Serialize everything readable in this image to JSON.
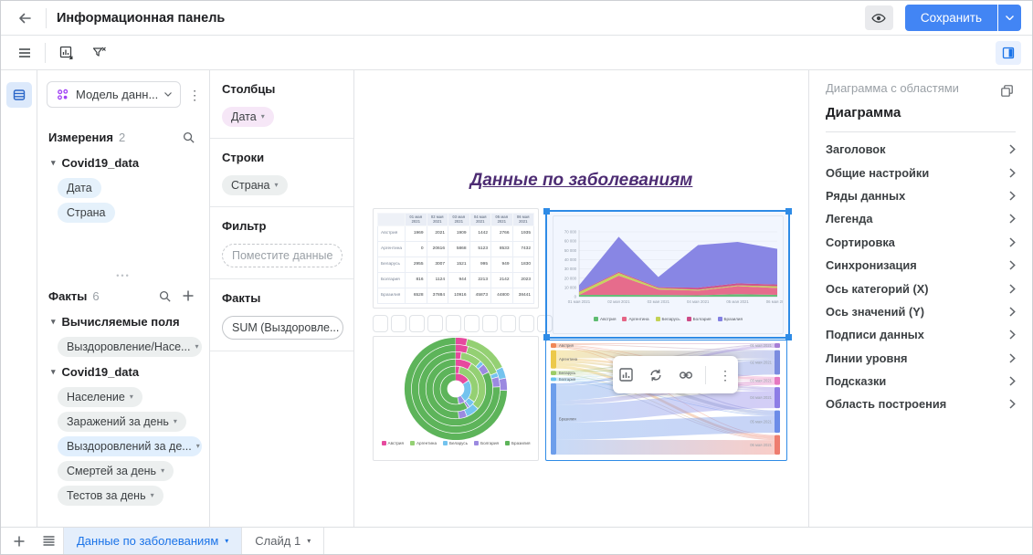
{
  "header": {
    "title": "Информационная панель",
    "save_label": "Сохранить"
  },
  "data_panel": {
    "model_selector": "Модель данн...",
    "dimensions": {
      "title": "Измерения",
      "count": "2",
      "groups": [
        {
          "name": "Covid19_data",
          "fields": [
            {
              "label": "Дата"
            },
            {
              "label": "Страна"
            }
          ]
        }
      ]
    },
    "facts": {
      "title": "Факты",
      "count": "6",
      "groups": [
        {
          "name": "Вычисляемые поля",
          "fields": [
            {
              "label": "Выздоровление/Насе...",
              "caret": true
            }
          ]
        },
        {
          "name": "Covid19_data",
          "fields": [
            {
              "label": "Население",
              "caret": true
            },
            {
              "label": "Заражений за день",
              "caret": true
            },
            {
              "label": "Выздоровлений за де...",
              "caret": true,
              "highlight": true
            },
            {
              "label": "Смертей за день",
              "caret": true
            },
            {
              "label": "Тестов за день",
              "caret": true
            }
          ]
        }
      ]
    }
  },
  "fields_panel": {
    "columns_title": "Столбцы",
    "columns_chip": "Дата",
    "rows_title": "Строки",
    "rows_chip": "Страна",
    "filter_title": "Фильтр",
    "filter_placeholder": "Поместите данные",
    "facts_title": "Факты",
    "facts_chip": "SUM (Выздоровле..."
  },
  "canvas": {
    "title": "Данные по заболеваниям",
    "empty_slots": 11
  },
  "chart_data": [
    {
      "type": "table",
      "columns": [
        "01 мая 2021",
        "02 мая 2021",
        "03 мая 2021",
        "04 мая 2021",
        "05 мая 2021",
        "06 мая 2021"
      ],
      "rows": [
        "Австрия",
        "Аргентина",
        "Беларусь",
        "Болгария",
        "Бразилия"
      ],
      "values": [
        [
          1969,
          2021,
          1909,
          1442,
          2766,
          1935
        ],
        [
          0,
          20616,
          5868,
          5123,
          8533,
          7432
        ],
        [
          2955,
          3007,
          1521,
          995,
          949,
          1830
        ],
        [
          816,
          1124,
          944,
          2213,
          2142,
          2023
        ],
        [
          6528,
          37884,
          10916,
          45873,
          44800,
          38441
        ]
      ]
    },
    {
      "type": "area",
      "stacked": true,
      "grid": true,
      "legend_position": "bottom",
      "categories": [
        "01 мая 2021",
        "02 мая 2021",
        "03 мая 2021",
        "04 мая 2021",
        "05 мая 2021",
        "06 мая 2021"
      ],
      "ylim": [
        0,
        70000
      ],
      "ytick_step": 10000,
      "series": [
        {
          "name": "Австрия",
          "color": "#61c168",
          "values": [
            1969,
            2021,
            1909,
            1442,
            2766,
            1935
          ]
        },
        {
          "name": "Аргентина",
          "color": "#f2637e",
          "values": [
            0,
            20616,
            5868,
            5123,
            8533,
            7432
          ]
        },
        {
          "name": "Беларусь",
          "color": "#cdd94a",
          "values": [
            2955,
            3007,
            1521,
            995,
            949,
            1830
          ]
        },
        {
          "name": "Болгария",
          "color": "#d8487f",
          "values": [
            816,
            1124,
            944,
            2213,
            2142,
            2023
          ]
        },
        {
          "name": "Бразилия",
          "color": "#8781e1",
          "values": [
            6528,
            37884,
            10916,
            45873,
            44800,
            38441
          ]
        }
      ]
    },
    {
      "type": "pie",
      "variant": "concentric-rings",
      "legend_position": "bottom",
      "rings": [
        "01 мая 2021",
        "02 мая 2021",
        "03 мая 2021",
        "04 мая 2021",
        "05 мая 2021",
        "06 мая 2021"
      ],
      "series": [
        {
          "name": "Австрия",
          "color": "#e64a9e",
          "values": [
            1969,
            2021,
            1909,
            1442,
            2766,
            1935
          ]
        },
        {
          "name": "Аргентина",
          "color": "#94d073",
          "values": [
            0,
            20616,
            5868,
            5123,
            8533,
            7432
          ]
        },
        {
          "name": "Беларусь",
          "color": "#74c3ee",
          "values": [
            2955,
            3007,
            1521,
            995,
            949,
            1830
          ]
        },
        {
          "name": "Болгария",
          "color": "#9b8ae0",
          "values": [
            816,
            1124,
            944,
            2213,
            2142,
            2023
          ]
        },
        {
          "name": "Бразилия",
          "color": "#5db45a",
          "values": [
            6528,
            37884,
            10916,
            45873,
            44800,
            38441
          ]
        }
      ]
    },
    {
      "type": "sankey",
      "left_nodes": [
        {
          "name": "Австрия",
          "color": "#f08757"
        },
        {
          "name": "Аргентина",
          "color": "#ecc94b"
        },
        {
          "name": "Беларусь",
          "color": "#9ccc65"
        },
        {
          "name": "Болгария",
          "color": "#67c3ee"
        },
        {
          "name": "Бразилия",
          "color": "#6d9eeb"
        }
      ],
      "right_nodes": [
        {
          "name": "01 мая 2021",
          "color": "#a87fd6"
        },
        {
          "name": "02 мая 2021",
          "color": "#7b8ce0"
        },
        {
          "name": "03 мая 2021",
          "color": "#e678c0"
        },
        {
          "name": "04 мая 2021",
          "color": "#8d7ce6"
        },
        {
          "name": "05 мая 2021",
          "color": "#6c8ce8"
        },
        {
          "name": "06 мая 2021",
          "color": "#ee7d6f"
        }
      ],
      "flows": [
        [
          1969,
          2021,
          1909,
          1442,
          2766,
          1935
        ],
        [
          0,
          20616,
          5868,
          5123,
          8533,
          7432
        ],
        [
          2955,
          3007,
          1521,
          995,
          949,
          1830
        ],
        [
          816,
          1124,
          944,
          2213,
          2142,
          2023
        ],
        [
          6528,
          37884,
          10916,
          45873,
          44800,
          38441
        ]
      ]
    }
  ],
  "settings_panel": {
    "widget_type": "Диаграмма с областями",
    "widget_name": "Диаграмма",
    "items": [
      "Заголовок",
      "Общие настройки",
      "Ряды данных",
      "Легенда",
      "Сортировка",
      "Синхронизация",
      "Ось категорий (X)",
      "Ось значений (Y)",
      "Подписи данных",
      "Линии уровня",
      "Подсказки",
      "Область построения"
    ]
  },
  "bottom_bar": {
    "tabs": [
      {
        "label": "Данные по заболеваниям",
        "active": true
      },
      {
        "label": "Слайд 1",
        "active": false
      }
    ]
  },
  "colors": {
    "accent": "#1a73e8",
    "selection": "#2e8be6",
    "slide_title": "#4d2c73"
  }
}
